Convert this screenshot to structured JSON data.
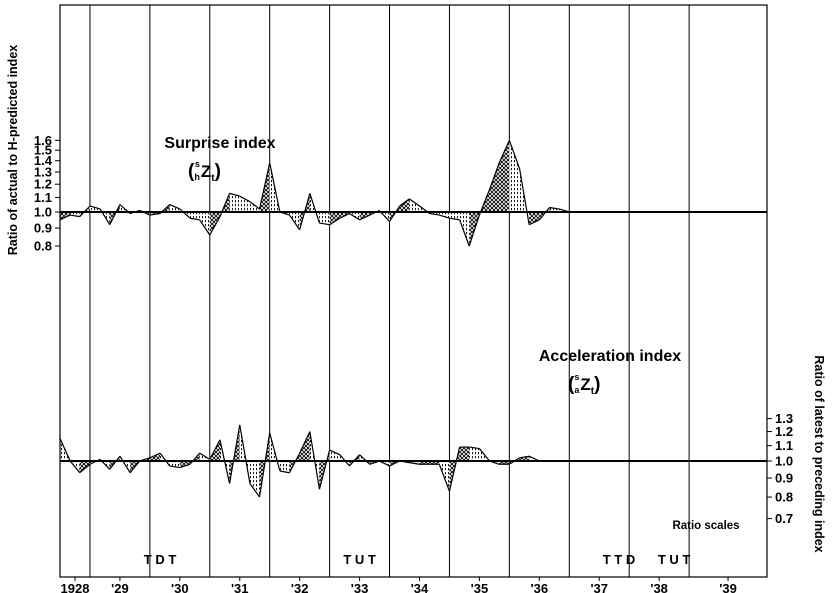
{
  "chart_data": {
    "type": "area",
    "x_labels": [
      "1928",
      "'29",
      "'30",
      "'31",
      "'32",
      "'33",
      "'34",
      "'35",
      "'36",
      "'37",
      "'38",
      "'39"
    ],
    "year_dividers": [
      1928.5,
      1929.5,
      1930.5,
      1931.5,
      1932.5,
      1933.5,
      1934.5,
      1935.5,
      1936.5,
      1937.5,
      1938.5
    ],
    "x_range": [
      1928.0,
      1939.8
    ],
    "baseline": 1.0,
    "left_axis": {
      "label": "Ratio of actual to H-predicted index",
      "ticks": [
        0.8,
        0.9,
        1.0,
        1.1,
        1.2,
        1.3,
        1.4,
        1.5,
        1.6
      ],
      "tick_labels": [
        "0.8",
        "0.9",
        "1.0",
        "1.1",
        "1.2",
        "1.3",
        "1.4",
        "1.5",
        "1.6"
      ]
    },
    "right_axis": {
      "label": "Ratio of latest to preceding index",
      "ticks": [
        0.7,
        0.8,
        0.9,
        1.0,
        1.1,
        1.2,
        1.3
      ],
      "tick_labels": [
        "0.7",
        "0.8",
        "0.9",
        "1.0",
        "1.1",
        "1.2",
        "1.3"
      ]
    },
    "scale_note": "Ratio scales",
    "series": [
      {
        "label": "Surprise index",
        "notation": {
          "main": "Z",
          "left_super": "s",
          "left_sub": "h",
          "sub": "t"
        },
        "axis": "left",
        "x": [
          1928.0,
          1928.17,
          1928.33,
          1928.5,
          1928.67,
          1928.83,
          1929.0,
          1929.17,
          1929.33,
          1929.5,
          1929.67,
          1929.83,
          1930.0,
          1930.17,
          1930.33,
          1930.5,
          1930.67,
          1930.83,
          1931.0,
          1931.17,
          1931.33,
          1931.5,
          1931.67,
          1931.83,
          1932.0,
          1932.17,
          1932.33,
          1932.5,
          1932.67,
          1932.83,
          1933.0,
          1933.17,
          1933.33,
          1933.5,
          1933.67,
          1933.83,
          1934.0,
          1934.17,
          1934.33,
          1934.5,
          1934.67,
          1934.83,
          1935.0,
          1935.17,
          1935.33,
          1935.5,
          1935.67,
          1935.83,
          1936.0,
          1936.17,
          1936.33,
          1936.5,
          1936.67,
          1936.83,
          1937.0,
          1937.17,
          1937.33,
          1937.5,
          1937.67,
          1937.83,
          1938.0,
          1938.17,
          1938.33,
          1938.5,
          1938.67,
          1938.83,
          1939.0,
          1939.17,
          1939.33,
          1939.5,
          1939.67,
          1939.8
        ],
        "y": [
          0.95,
          0.98,
          0.97,
          1.04,
          1.02,
          0.92,
          1.05,
          0.99,
          1.01,
          0.98,
          0.99,
          1.05,
          1.02,
          0.96,
          0.95,
          0.86,
          0.97,
          1.13,
          1.11,
          1.07,
          1.02,
          1.38,
          1.0,
          0.98,
          0.89,
          1.13,
          0.93,
          0.92,
          0.96,
          0.99,
          0.95,
          0.98,
          1.01,
          0.94,
          1.04,
          1.09,
          1.04,
          0.99,
          0.98,
          0.96,
          0.95,
          0.8,
          0.98,
          1.16,
          1.38,
          1.6,
          1.33,
          0.92,
          0.95,
          1.03,
          1.02,
          1.0,
          1.0,
          1.0,
          1.0,
          1.0,
          1.0,
          1.0,
          1.0,
          1.0,
          1.0,
          1.0,
          1.0,
          1.0,
          1.0,
          1.0,
          1.0,
          1.0,
          1.0,
          1.0,
          1.0,
          1.0
        ]
      },
      {
        "label": "Acceleration index",
        "notation": {
          "main": "Z",
          "left_super": "s",
          "left_sub": "a",
          "sub": "t"
        },
        "axis": "right",
        "x": [
          1928.0,
          1928.17,
          1928.33,
          1928.5,
          1928.67,
          1928.83,
          1929.0,
          1929.17,
          1929.33,
          1929.5,
          1929.67,
          1929.83,
          1930.0,
          1930.17,
          1930.33,
          1930.5,
          1930.67,
          1930.83,
          1931.0,
          1931.17,
          1931.33,
          1931.5,
          1931.67,
          1931.83,
          1932.0,
          1932.17,
          1932.33,
          1932.5,
          1932.67,
          1932.83,
          1933.0,
          1933.17,
          1933.33,
          1933.5,
          1933.67,
          1933.83,
          1934.0,
          1934.17,
          1934.33,
          1934.5,
          1934.67,
          1934.83,
          1935.0,
          1935.17,
          1935.33,
          1935.5,
          1935.67,
          1935.83,
          1936.0,
          1936.17,
          1936.33,
          1936.5,
          1936.67,
          1936.83,
          1937.0,
          1937.17,
          1937.33,
          1937.5,
          1937.67,
          1937.83,
          1938.0,
          1938.17,
          1938.33,
          1938.5,
          1938.67,
          1938.83,
          1939.0,
          1939.17,
          1939.33,
          1939.5,
          1939.67,
          1939.8
        ],
        "y": [
          1.15,
          1.0,
          0.93,
          0.98,
          1.01,
          0.95,
          1.03,
          0.93,
          1.0,
          1.02,
          1.05,
          0.97,
          0.96,
          0.98,
          1.05,
          1.01,
          1.14,
          0.87,
          1.25,
          0.87,
          0.8,
          1.19,
          0.94,
          0.93,
          1.05,
          1.2,
          0.84,
          1.07,
          1.04,
          0.97,
          1.04,
          0.98,
          1.0,
          0.97,
          1.0,
          0.99,
          0.98,
          0.98,
          0.98,
          0.83,
          1.09,
          1.09,
          1.08,
          1.0,
          0.98,
          0.98,
          1.02,
          1.03,
          1.0,
          1.0,
          1.0,
          1.0,
          1.0,
          1.0,
          1.0,
          1.0,
          1.0,
          1.0,
          1.0,
          1.0,
          1.0,
          1.0,
          1.0,
          1.0,
          1.0,
          1.0,
          1.0,
          1.0,
          1.0,
          1.0,
          1.0,
          1.0
        ]
      }
    ],
    "turning_point_markers": [
      {
        "x": 1929.67,
        "text": "T D T"
      },
      {
        "x": 1933.0,
        "text": "T U T"
      },
      {
        "x": 1937.33,
        "text": "T T D"
      },
      {
        "x": 1938.25,
        "text": "T U T"
      }
    ]
  }
}
